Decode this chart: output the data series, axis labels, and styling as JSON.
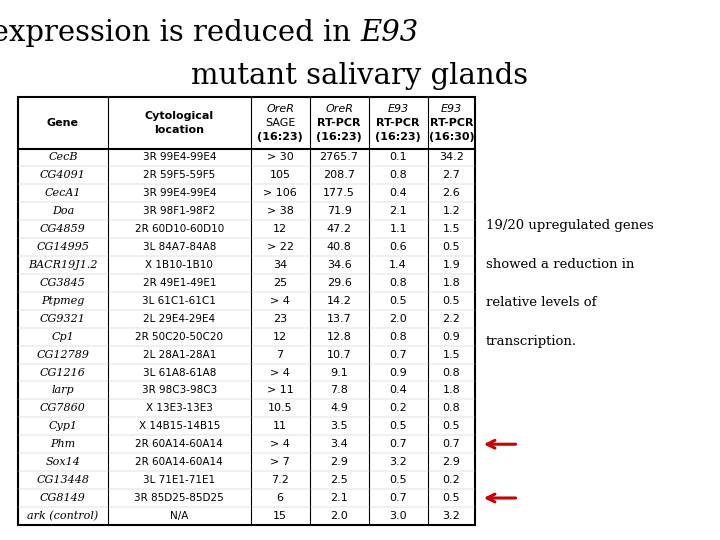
{
  "title_normal": "Gene expression is reduced in ",
  "title_italic": "E93",
  "title_line2": "mutant salivary glands",
  "col_headers": [
    [
      "Gene"
    ],
    [
      "Cytological",
      "location"
    ],
    [
      "OreR",
      "SAGE",
      "(16:23)"
    ],
    [
      "OreR",
      "RT-PCR",
      "(16:23)"
    ],
    [
      "E93",
      "RT-PCR",
      "(16:23)"
    ],
    [
      "E93",
      "RT-PCR",
      "(16:30)"
    ]
  ],
  "rows": [
    [
      "CecB",
      "3R 99E4-99E4",
      "> 30",
      "2765.7",
      "0.1",
      "34.2"
    ],
    [
      "CG4091",
      "2R 59F5-59F5",
      "105",
      "208.7",
      "0.8",
      "2.7"
    ],
    [
      "CecA1",
      "3R 99E4-99E4",
      "> 106",
      "177.5",
      "0.4",
      "2.6"
    ],
    [
      "Doa",
      "3R 98F1-98F2",
      "> 38",
      "71.9",
      "2.1",
      "1.2"
    ],
    [
      "CG4859",
      "2R 60D10-60D10",
      "12",
      "47.2",
      "1.1",
      "1.5"
    ],
    [
      "CG14995",
      "3L 84A7-84A8",
      "> 22",
      "40.8",
      "0.6",
      "0.5"
    ],
    [
      "BACR19J1.2",
      "X 1B10-1B10",
      "34",
      "34.6",
      "1.4",
      "1.9"
    ],
    [
      "CG3845",
      "2R 49E1-49E1",
      "25",
      "29.6",
      "0.8",
      "1.8"
    ],
    [
      "Ptpmeg",
      "3L 61C1-61C1",
      "> 4",
      "14.2",
      "0.5",
      "0.5"
    ],
    [
      "CG9321",
      "2L 29E4-29E4",
      "23",
      "13.7",
      "2.0",
      "2.2"
    ],
    [
      "Cp1",
      "2R 50C20-50C20",
      "12",
      "12.8",
      "0.8",
      "0.9"
    ],
    [
      "CG12789",
      "2L 28A1-28A1",
      "7",
      "10.7",
      "0.7",
      "1.5"
    ],
    [
      "CG1216",
      "3L 61A8-61A8",
      "> 4",
      "9.1",
      "0.9",
      "0.8"
    ],
    [
      "larp",
      "3R 98C3-98C3",
      "> 11",
      "7.8",
      "0.4",
      "1.8"
    ],
    [
      "CG7860",
      "X 13E3-13E3",
      "10.5",
      "4.9",
      "0.2",
      "0.8"
    ],
    [
      "Cyp1",
      "X 14B15-14B15",
      "11",
      "3.5",
      "0.5",
      "0.5"
    ],
    [
      "Phm",
      "2R 60A14-60A14",
      "> 4",
      "3.4",
      "0.7",
      "0.7"
    ],
    [
      "Sox14",
      "2R 60A14-60A14",
      "> 7",
      "2.9",
      "3.2",
      "2.9"
    ],
    [
      "CG13448",
      "3L 71E1-71E1",
      "7.2",
      "2.5",
      "0.5",
      "0.2"
    ],
    [
      "CG8149",
      "3R 85D25-85D25",
      "6",
      "2.1",
      "0.7",
      "0.5"
    ],
    [
      "ark (control)",
      "N/A",
      "15",
      "2.0",
      "3.0",
      "3.2"
    ]
  ],
  "italic_genes": [
    "CecB",
    "CG4091",
    "CecA1",
    "Doa",
    "CG4859",
    "CG14995",
    "BACR19J1.2",
    "CG3845",
    "Ptpmeg",
    "CG9321",
    "Cp1",
    "CG12789",
    "CG1216",
    "larp",
    "CG7860",
    "Cyp1",
    "Phm",
    "Sox14",
    "CG13448",
    "CG8149",
    "ark (control)"
  ],
  "arrow_rows": [
    17,
    20
  ],
  "annotation_text": [
    "19/20 upregulated genes",
    "showed a reduction in",
    "relative levels of",
    "transcription."
  ],
  "background": "#ffffff",
  "font_size_title": 21,
  "font_size_header": 8,
  "font_size_table": 8
}
